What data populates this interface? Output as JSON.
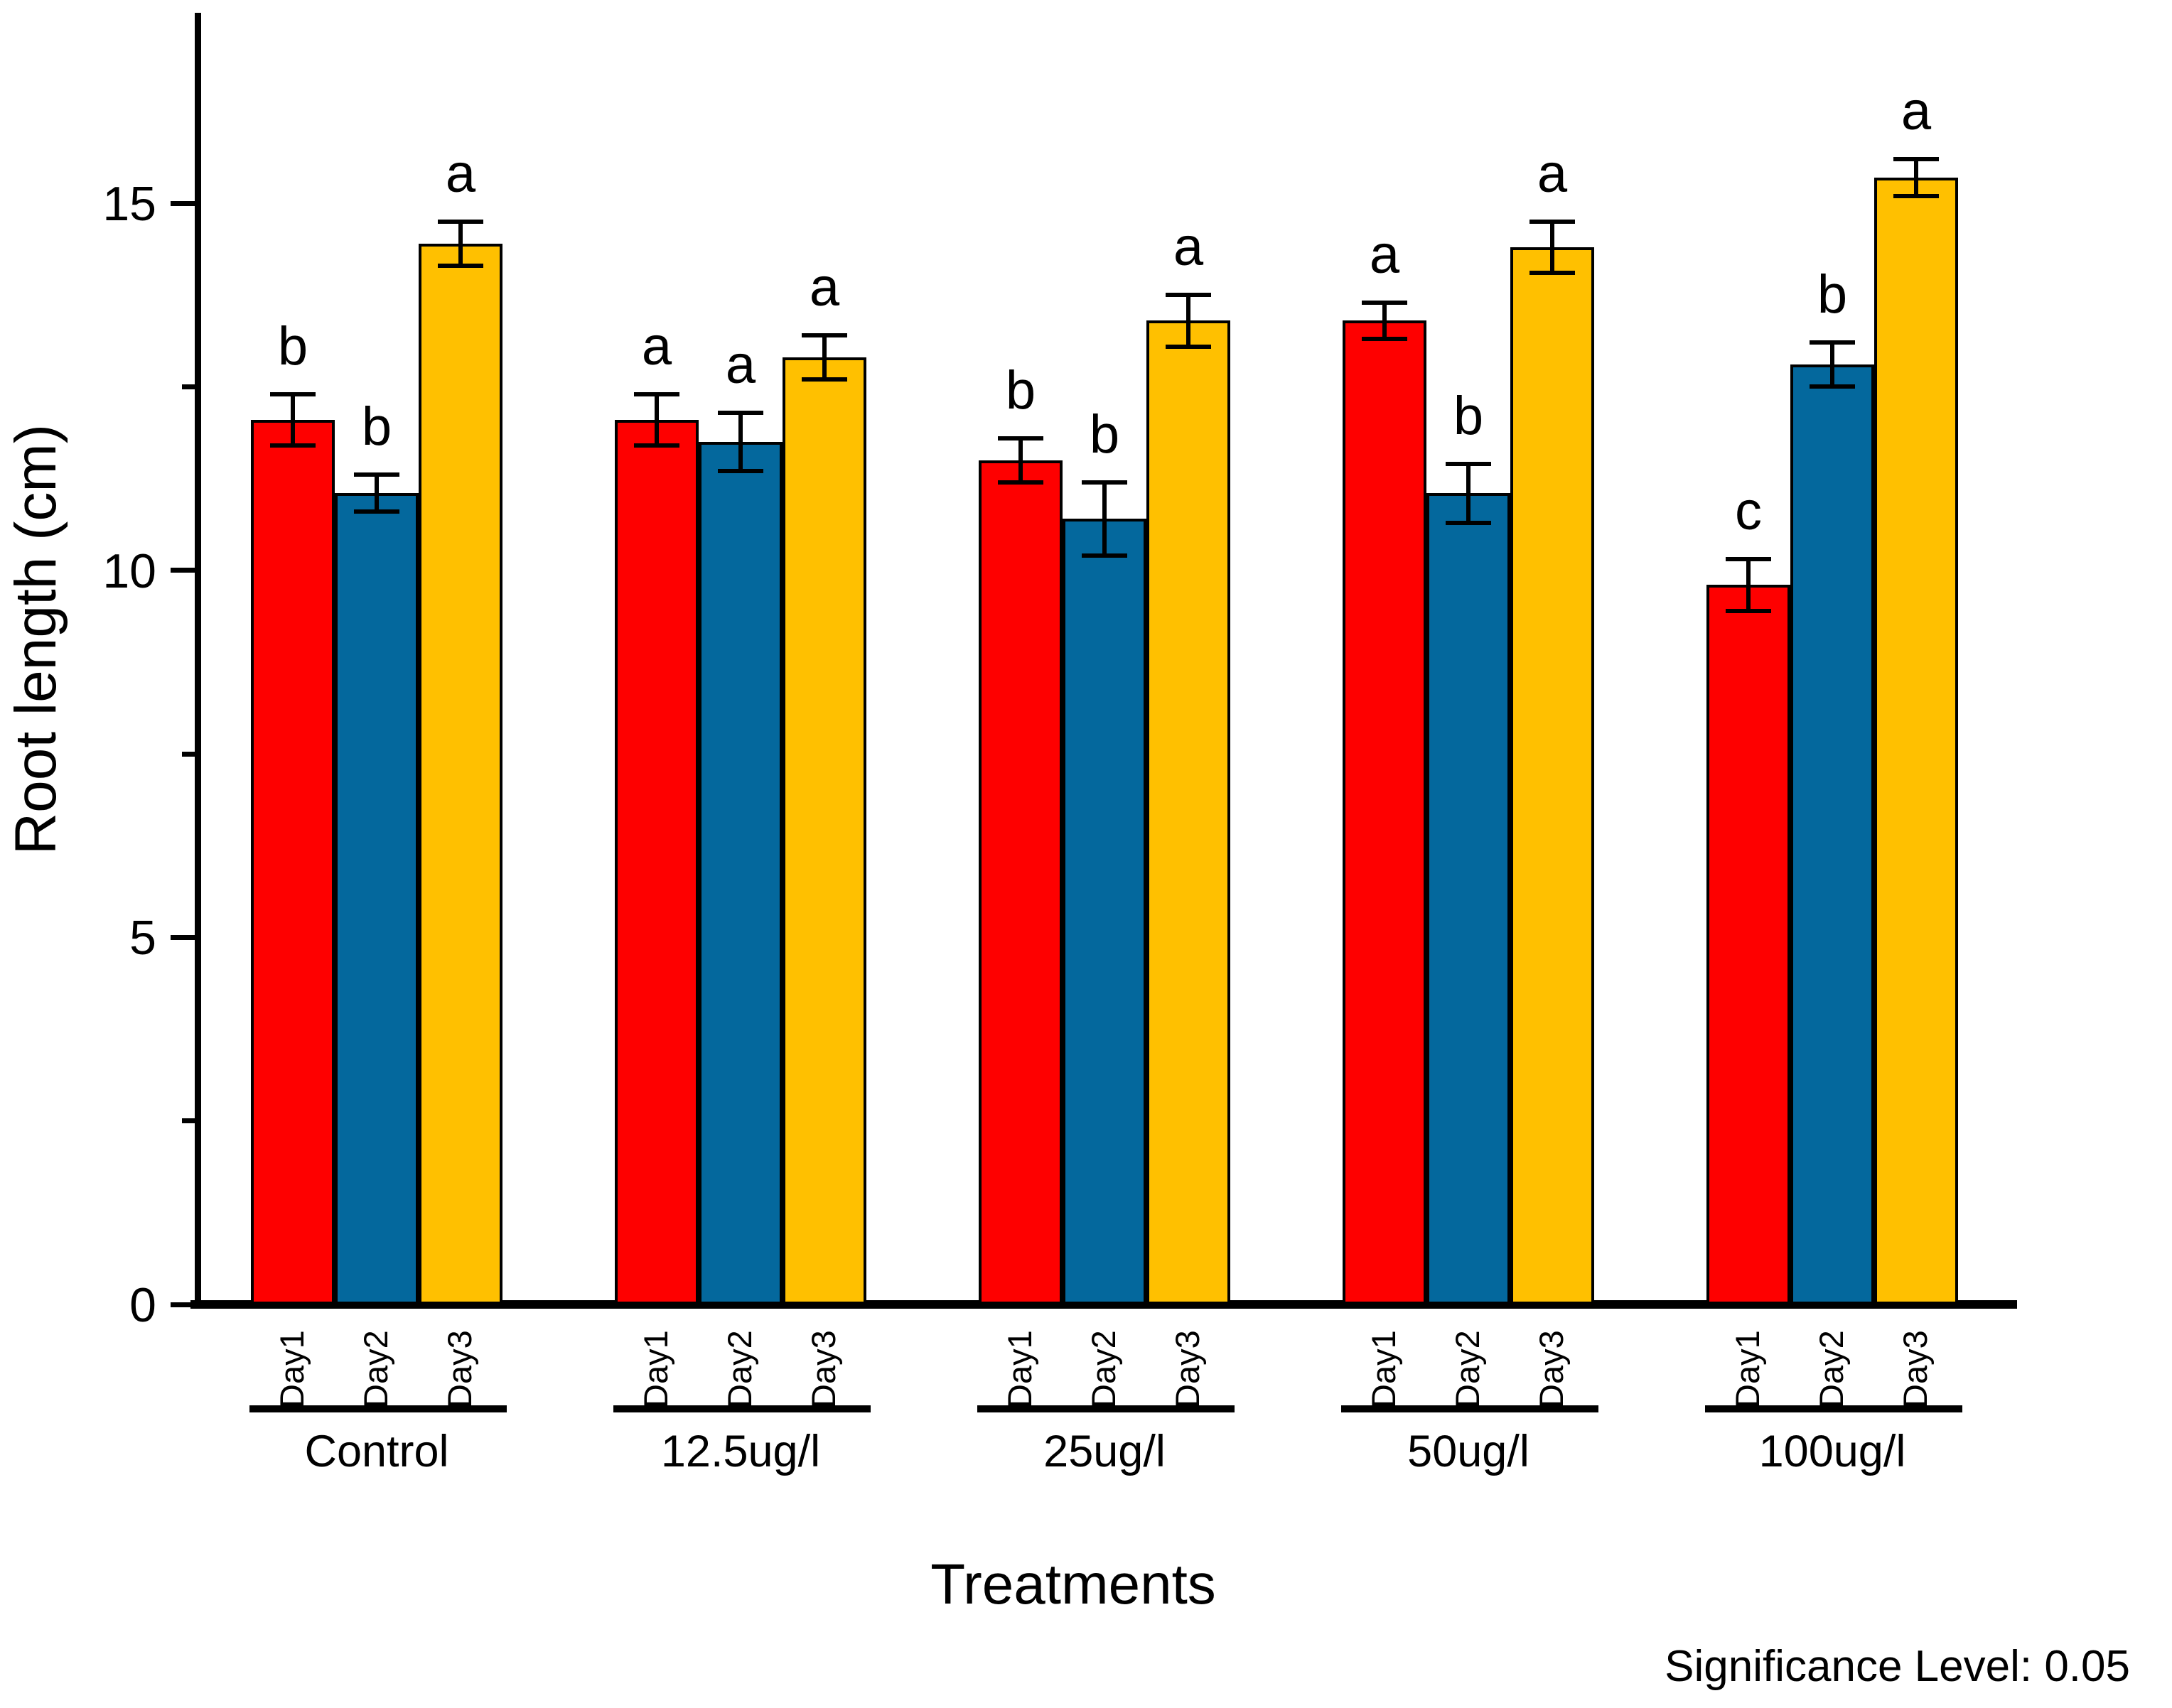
{
  "chart_data": {
    "type": "bar",
    "title": "",
    "xlabel": "Treatments",
    "ylabel": "Root length (cm)",
    "footnote": "Significance Level: 0.05",
    "ylim": [
      0,
      17.5
    ],
    "yticks_major": [
      0,
      5,
      10,
      15
    ],
    "yticks_minor": [
      2.5,
      7.5,
      12.5
    ],
    "grid": false,
    "legend_position": "none",
    "series_labels": [
      "Day1",
      "Day2",
      "Day3"
    ],
    "series_colors": {
      "Day1": "#FE0000",
      "Day2": "#04689D",
      "Day3": "#FFC000"
    },
    "categories": [
      "Control",
      "12.5ug/l",
      "25ug/l",
      "50ug/l",
      "100ug/l"
    ],
    "groups": [
      {
        "label": "Control",
        "values": [
          12.05,
          11.05,
          14.45
        ],
        "errors": [
          0.35,
          0.25,
          0.3
        ],
        "sig_letters": [
          "b",
          "b",
          "a"
        ]
      },
      {
        "label": "12.5ug/l",
        "values": [
          12.05,
          11.75,
          12.9
        ],
        "errors": [
          0.35,
          0.4,
          0.3
        ],
        "sig_letters": [
          "a",
          "a",
          "a"
        ]
      },
      {
        "label": "25ug/l",
        "values": [
          11.5,
          10.7,
          13.4
        ],
        "errors": [
          0.3,
          0.5,
          0.35
        ],
        "sig_letters": [
          "b",
          "b",
          "a"
        ]
      },
      {
        "label": "50ug/l",
        "values": [
          13.4,
          11.05,
          14.4
        ],
        "errors": [
          0.25,
          0.4,
          0.35
        ],
        "sig_letters": [
          "a",
          "b",
          "a"
        ]
      },
      {
        "label": "100ug/l",
        "values": [
          9.8,
          12.8,
          15.35
        ],
        "errors": [
          0.35,
          0.3,
          0.25
        ],
        "sig_letters": [
          "c",
          "b",
          "a"
        ]
      }
    ]
  }
}
